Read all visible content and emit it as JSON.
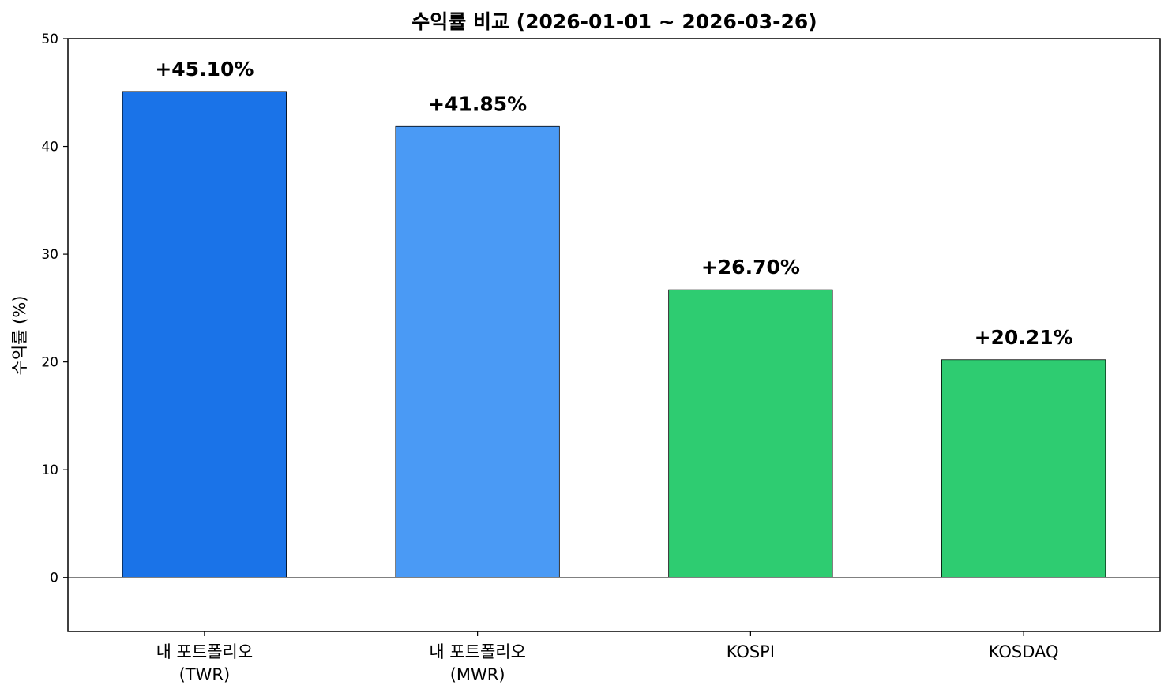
{
  "chart_data": {
    "type": "bar",
    "title": "수익률 비교 (2026-01-01 ~ 2026-03-26)",
    "xlabel": "",
    "ylabel": "수익률 (%)",
    "ylim": [
      -5,
      50
    ],
    "yticks": [
      0,
      10,
      20,
      30,
      40,
      50
    ],
    "grid": false,
    "legend": "none",
    "zero_line": true,
    "categories": [
      [
        "내 포트폴리오",
        "(TWR)"
      ],
      [
        "내 포트폴리오",
        "(MWR)"
      ],
      [
        "KOSPI"
      ],
      [
        "KOSDAQ"
      ]
    ],
    "values": [
      45.1,
      41.85,
      26.7,
      20.21
    ],
    "value_labels": [
      "+45.10%",
      "+41.85%",
      "+26.70%",
      "+20.21%"
    ],
    "colors": [
      "#1a73e8",
      "#4a9af5",
      "#2ecc71",
      "#2ecc71"
    ],
    "edge_color": "#000000",
    "zero_line_color": "#808080"
  }
}
